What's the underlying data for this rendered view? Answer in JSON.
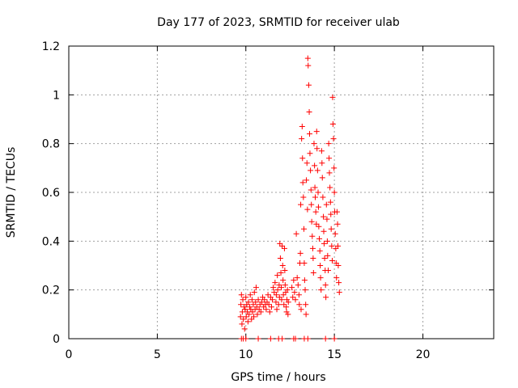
{
  "chart_data": {
    "type": "scatter",
    "title": "Day 177 of 2023, SRMTID for receiver ulab",
    "xlabel": "GPS time / hours",
    "ylabel": "SRMTID / TECUs",
    "xlim": [
      0,
      24
    ],
    "ylim": [
      0,
      1.2
    ],
    "xticks": [
      0,
      5,
      10,
      15,
      20
    ],
    "xtick_labels": [
      "0",
      "5",
      "10",
      "15",
      "20"
    ],
    "yticks": [
      0,
      0.2,
      0.4,
      0.6,
      0.8,
      1.0,
      1.2
    ],
    "ytick_labels": [
      "0",
      "0.2",
      "0.4",
      "0.6",
      "0.8",
      "1",
      "1.2"
    ],
    "grid": true,
    "marker": "+",
    "series": [
      {
        "name": "SRMTID",
        "color": "#ff0000",
        "points": [
          [
            9.75,
            0.0
          ],
          [
            9.85,
            0.0
          ],
          [
            10.0,
            0.0
          ],
          [
            10.7,
            0.0
          ],
          [
            11.4,
            0.0
          ],
          [
            11.85,
            0.0
          ],
          [
            12.05,
            0.0
          ],
          [
            12.7,
            0.0
          ],
          [
            12.8,
            0.0
          ],
          [
            13.3,
            0.0
          ],
          [
            13.5,
            0.0
          ],
          [
            14.5,
            0.0
          ],
          [
            15.0,
            0.0
          ],
          [
            9.7,
            0.09
          ],
          [
            9.72,
            0.14
          ],
          [
            9.75,
            0.18
          ],
          [
            9.78,
            0.06
          ],
          [
            9.8,
            0.11
          ],
          [
            9.83,
            0.16
          ],
          [
            9.86,
            0.08
          ],
          [
            9.9,
            0.13
          ],
          [
            9.93,
            0.04
          ],
          [
            9.96,
            0.12
          ],
          [
            10.0,
            0.17
          ],
          [
            10.02,
            0.09
          ],
          [
            10.05,
            0.14
          ],
          [
            10.08,
            0.11
          ],
          [
            10.12,
            0.07
          ],
          [
            10.15,
            0.15
          ],
          [
            10.18,
            0.1
          ],
          [
            10.22,
            0.13
          ],
          [
            10.25,
            0.18
          ],
          [
            10.28,
            0.12
          ],
          [
            10.32,
            0.08
          ],
          [
            10.35,
            0.16
          ],
          [
            10.38,
            0.11
          ],
          [
            10.42,
            0.14
          ],
          [
            10.45,
            0.09
          ],
          [
            10.48,
            0.19
          ],
          [
            10.52,
            0.12
          ],
          [
            10.55,
            0.15
          ],
          [
            10.58,
            0.21
          ],
          [
            10.62,
            0.13
          ],
          [
            10.65,
            0.1
          ],
          [
            10.7,
            0.16
          ],
          [
            10.75,
            0.12
          ],
          [
            10.8,
            0.14
          ],
          [
            10.85,
            0.11
          ],
          [
            10.9,
            0.15
          ],
          [
            10.95,
            0.17
          ],
          [
            11.0,
            0.13
          ],
          [
            11.05,
            0.16
          ],
          [
            11.1,
            0.14
          ],
          [
            11.15,
            0.12
          ],
          [
            11.2,
            0.15
          ],
          [
            11.25,
            0.18
          ],
          [
            11.3,
            0.14
          ],
          [
            11.35,
            0.11
          ],
          [
            11.4,
            0.17
          ],
          [
            11.45,
            0.13
          ],
          [
            11.5,
            0.16
          ],
          [
            11.55,
            0.21
          ],
          [
            11.6,
            0.19
          ],
          [
            11.65,
            0.23
          ],
          [
            11.7,
            0.15
          ],
          [
            11.72,
            0.18
          ],
          [
            11.75,
            0.12
          ],
          [
            11.78,
            0.26
          ],
          [
            11.8,
            0.2
          ],
          [
            11.85,
            0.14
          ],
          [
            11.88,
            0.22
          ],
          [
            11.9,
            0.17
          ],
          [
            11.92,
            0.39
          ],
          [
            11.95,
            0.33
          ],
          [
            11.98,
            0.27
          ],
          [
            12.0,
            0.21
          ],
          [
            12.02,
            0.16
          ],
          [
            12.05,
            0.38
          ],
          [
            12.08,
            0.3
          ],
          [
            12.1,
            0.24
          ],
          [
            12.12,
            0.18
          ],
          [
            12.15,
            0.14
          ],
          [
            12.18,
            0.37
          ],
          [
            12.2,
            0.28
          ],
          [
            12.22,
            0.22
          ],
          [
            12.25,
            0.19
          ],
          [
            12.28,
            0.13
          ],
          [
            12.3,
            0.11
          ],
          [
            12.32,
            0.16
          ],
          [
            12.35,
            0.2
          ],
          [
            12.38,
            0.1
          ],
          [
            12.4,
            0.15
          ],
          [
            12.6,
            0.21
          ],
          [
            12.65,
            0.17
          ],
          [
            12.7,
            0.24
          ],
          [
            12.75,
            0.19
          ],
          [
            12.8,
            0.16
          ],
          [
            12.85,
            0.43
          ],
          [
            12.9,
            0.25
          ],
          [
            12.95,
            0.22
          ],
          [
            13.0,
            0.18
          ],
          [
            13.02,
            0.14
          ],
          [
            13.05,
            0.31
          ],
          [
            13.08,
            0.35
          ],
          [
            13.1,
            0.55
          ],
          [
            13.12,
            0.12
          ],
          [
            13.15,
            0.82
          ],
          [
            13.18,
            0.87
          ],
          [
            13.2,
            0.74
          ],
          [
            13.22,
            0.64
          ],
          [
            13.25,
            0.58
          ],
          [
            13.28,
            0.45
          ],
          [
            13.3,
            0.31
          ],
          [
            13.32,
            0.24
          ],
          [
            13.35,
            0.2
          ],
          [
            13.38,
            0.14
          ],
          [
            13.4,
            0.1
          ],
          [
            13.42,
            0.65
          ],
          [
            13.45,
            0.72
          ],
          [
            13.48,
            0.53
          ],
          [
            13.5,
            1.15
          ],
          [
            13.52,
            1.12
          ],
          [
            13.55,
            1.04
          ],
          [
            13.58,
            0.93
          ],
          [
            13.6,
            0.84
          ],
          [
            13.62,
            0.76
          ],
          [
            13.65,
            0.69
          ],
          [
            13.68,
            0.61
          ],
          [
            13.7,
            0.55
          ],
          [
            13.72,
            0.48
          ],
          [
            13.75,
            0.42
          ],
          [
            13.78,
            0.37
          ],
          [
            13.8,
            0.33
          ],
          [
            13.82,
            0.27
          ],
          [
            13.85,
            0.8
          ],
          [
            13.88,
            0.71
          ],
          [
            13.9,
            0.62
          ],
          [
            13.92,
            0.58
          ],
          [
            13.95,
            0.52
          ],
          [
            13.98,
            0.47
          ],
          [
            14.0,
            0.85
          ],
          [
            14.02,
            0.78
          ],
          [
            14.05,
            0.69
          ],
          [
            14.08,
            0.6
          ],
          [
            14.1,
            0.54
          ],
          [
            14.12,
            0.46
          ],
          [
            14.15,
            0.41
          ],
          [
            14.18,
            0.36
          ],
          [
            14.2,
            0.3
          ],
          [
            14.22,
            0.25
          ],
          [
            14.25,
            0.2
          ],
          [
            14.28,
            0.77
          ],
          [
            14.3,
            0.72
          ],
          [
            14.32,
            0.66
          ],
          [
            14.35,
            0.58
          ],
          [
            14.38,
            0.5
          ],
          [
            14.4,
            0.44
          ],
          [
            14.42,
            0.39
          ],
          [
            14.45,
            0.33
          ],
          [
            14.48,
            0.28
          ],
          [
            14.5,
            0.22
          ],
          [
            14.52,
            0.17
          ],
          [
            14.55,
            0.55
          ],
          [
            14.58,
            0.49
          ],
          [
            14.6,
            0.4
          ],
          [
            14.62,
            0.34
          ],
          [
            14.65,
            0.28
          ],
          [
            14.68,
            0.8
          ],
          [
            14.7,
            0.74
          ],
          [
            14.72,
            0.68
          ],
          [
            14.75,
            0.62
          ],
          [
            14.78,
            0.56
          ],
          [
            14.8,
            0.51
          ],
          [
            14.82,
            0.45
          ],
          [
            14.85,
            0.38
          ],
          [
            14.88,
            0.32
          ],
          [
            14.9,
            0.99
          ],
          [
            14.92,
            0.88
          ],
          [
            14.95,
            0.82
          ],
          [
            14.98,
            0.7
          ],
          [
            15.0,
            0.6
          ],
          [
            15.02,
            0.52
          ],
          [
            15.05,
            0.43
          ],
          [
            15.08,
            0.37
          ],
          [
            15.1,
            0.31
          ],
          [
            15.12,
            0.25
          ],
          [
            15.15,
            0.52
          ],
          [
            15.18,
            0.47
          ],
          [
            15.2,
            0.38
          ],
          [
            15.22,
            0.3
          ],
          [
            15.25,
            0.23
          ],
          [
            15.28,
            0.19
          ]
        ]
      }
    ]
  }
}
